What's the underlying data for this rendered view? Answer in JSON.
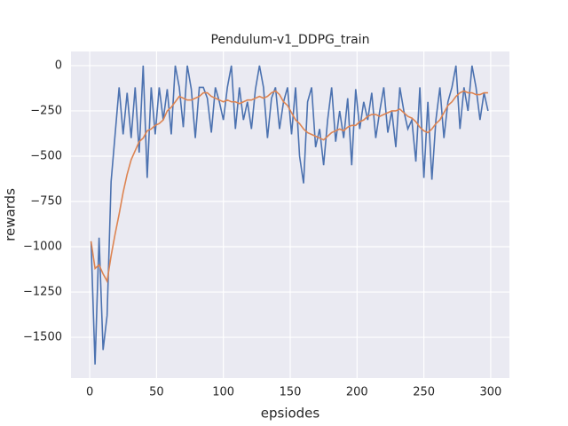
{
  "chart_data": {
    "type": "line",
    "title": "Pendulum-v1_DDPG_train",
    "x_label": "epsiodes",
    "y_label": "rewards",
    "x": [
      1,
      4,
      7,
      10,
      13,
      16,
      19,
      22,
      25,
      28,
      31,
      34,
      37,
      40,
      43,
      46,
      49,
      52,
      55,
      58,
      61,
      64,
      67,
      70,
      73,
      76,
      79,
      82,
      85,
      88,
      91,
      94,
      97,
      100,
      103,
      106,
      109,
      112,
      115,
      118,
      121,
      124,
      127,
      130,
      133,
      136,
      139,
      142,
      145,
      148,
      151,
      154,
      157,
      160,
      163,
      166,
      169,
      172,
      175,
      178,
      181,
      184,
      187,
      190,
      193,
      196,
      199,
      202,
      205,
      208,
      211,
      214,
      217,
      220,
      223,
      226,
      229,
      232,
      235,
      238,
      241,
      244,
      247,
      250,
      253,
      256,
      259,
      262,
      265,
      268,
      271,
      274,
      277,
      280,
      283,
      286,
      289,
      292,
      295,
      298
    ],
    "series": [
      {
        "color": "#4c72b0",
        "values": [
          -970,
          -1650,
          -950,
          -1570,
          -1380,
          -640,
          -380,
          -120,
          -380,
          -150,
          -400,
          -120,
          -480,
          0,
          -620,
          -120,
          -380,
          -120,
          -300,
          -130,
          -380,
          0,
          -120,
          -340,
          0,
          -130,
          -400,
          -120,
          -120,
          -180,
          -370,
          -120,
          -200,
          -300,
          -120,
          0,
          -350,
          -120,
          -300,
          -200,
          -350,
          -130,
          0,
          -120,
          -400,
          -180,
          -120,
          -350,
          -200,
          -120,
          -380,
          -120,
          -500,
          -650,
          -200,
          -120,
          -450,
          -350,
          -550,
          -300,
          -120,
          -420,
          -250,
          -400,
          -180,
          -550,
          -130,
          -350,
          -200,
          -300,
          -150,
          -400,
          -250,
          -120,
          -370,
          -250,
          -450,
          -120,
          -250,
          -350,
          -300,
          -530,
          -120,
          -620,
          -200,
          -630,
          -300,
          -120,
          -400,
          -200,
          -120,
          0,
          -350,
          -120,
          -250,
          0,
          -120,
          -300,
          -150,
          -250
        ]
      },
      {
        "color": "#dd8452",
        "values": [
          -970,
          -1120,
          -1100,
          -1150,
          -1190,
          -1050,
          -930,
          -820,
          -700,
          -600,
          -520,
          -470,
          -420,
          -400,
          -360,
          -350,
          -330,
          -320,
          -300,
          -250,
          -230,
          -200,
          -170,
          -180,
          -190,
          -190,
          -180,
          -170,
          -150,
          -150,
          -170,
          -180,
          -190,
          -200,
          -190,
          -200,
          -200,
          -210,
          -200,
          -190,
          -190,
          -180,
          -170,
          -180,
          -170,
          -150,
          -140,
          -160,
          -200,
          -220,
          -260,
          -300,
          -320,
          -350,
          -370,
          -380,
          -390,
          -400,
          -410,
          -390,
          -370,
          -360,
          -350,
          -360,
          -340,
          -330,
          -330,
          -310,
          -300,
          -280,
          -270,
          -270,
          -280,
          -270,
          -260,
          -250,
          -250,
          -240,
          -260,
          -280,
          -290,
          -310,
          -340,
          -360,
          -370,
          -350,
          -320,
          -300,
          -260,
          -220,
          -200,
          -170,
          -150,
          -140,
          -150,
          -150,
          -160,
          -160,
          -150,
          -150
        ]
      }
    ],
    "xlim": [
      -14,
      314
    ],
    "xticks": [
      0,
      50,
      100,
      150,
      200,
      250,
      300
    ],
    "ylim": [
      -1725,
      78
    ],
    "yticks": [
      0,
      {
        "value": -250,
        "label": "−250"
      },
      {
        "value": -500,
        "label": "−500"
      },
      {
        "value": -750,
        "label": "−750"
      },
      {
        "value": -1000,
        "label": "−1000"
      },
      {
        "value": -1250,
        "label": "−1250"
      },
      {
        "value": -1500,
        "label": "−1500"
      }
    ],
    "grid": true
  }
}
